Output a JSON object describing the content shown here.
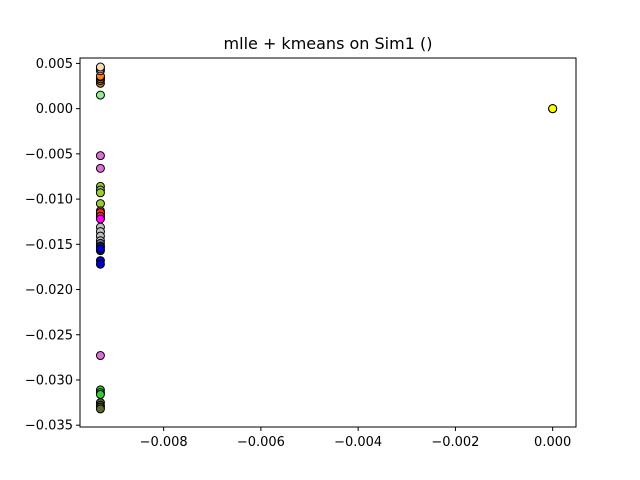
{
  "chart_data": {
    "type": "scatter",
    "title": "mlle + kmeans on Sim1 ()",
    "xlabel": "",
    "ylabel": "",
    "xlim": [
      -0.00972,
      0.00048
    ],
    "ylim": [
      -0.0352,
      0.0056
    ],
    "xticks": [
      {
        "value": -0.008,
        "label": "−0.008"
      },
      {
        "value": -0.006,
        "label": "−0.006"
      },
      {
        "value": -0.004,
        "label": "−0.004"
      },
      {
        "value": -0.002,
        "label": "−0.002"
      },
      {
        "value": 0.0,
        "label": "0.000"
      }
    ],
    "yticks": [
      {
        "value": 0.005,
        "label": "0.005"
      },
      {
        "value": 0.0,
        "label": "0.000"
      },
      {
        "value": -0.005,
        "label": "−0.005"
      },
      {
        "value": -0.01,
        "label": "−0.010"
      },
      {
        "value": -0.015,
        "label": "−0.015"
      },
      {
        "value": -0.02,
        "label": "−0.020"
      },
      {
        "value": -0.025,
        "label": "−0.025"
      },
      {
        "value": -0.03,
        "label": "−0.030"
      },
      {
        "value": -0.035,
        "label": "−0.035"
      }
    ],
    "grid": false,
    "marker_edge_color": "#000000",
    "series": [
      {
        "color": "#b8860b",
        "x": [
          -0.0093,
          -0.0093,
          -0.0093
        ],
        "y": [
          0.0028,
          0.0031,
          0.0034
        ]
      },
      {
        "color": "#ff7f0e",
        "x": [
          -0.0093,
          -0.0093,
          -0.0093
        ],
        "y": [
          0.0033,
          0.0035,
          0.0036
        ]
      },
      {
        "color": "#ffdab9",
        "x": [
          -0.0093,
          -0.0093,
          -0.0093
        ],
        "y": [
          0.0042,
          0.0044,
          0.0046
        ]
      },
      {
        "color": "#90ee90",
        "x": [
          -0.0093
        ],
        "y": [
          0.0015
        ]
      },
      {
        "color": "#da70d6",
        "x": [
          -0.0093,
          -0.0093,
          -0.0093
        ],
        "y": [
          -0.0052,
          -0.0066,
          -0.0273
        ]
      },
      {
        "color": "#9acd32",
        "x": [
          -0.0093,
          -0.0093,
          -0.0093,
          -0.0093
        ],
        "y": [
          -0.0086,
          -0.009,
          -0.0093,
          -0.0105
        ]
      },
      {
        "color": "#cd5c5c",
        "x": [
          -0.0093,
          -0.0093,
          -0.0093
        ],
        "y": [
          -0.0113,
          -0.0117,
          -0.0121
        ]
      },
      {
        "color": "#ff3030",
        "x": [
          -0.0093,
          -0.0093
        ],
        "y": [
          -0.0115,
          -0.0119
        ]
      },
      {
        "color": "#ff00ff",
        "x": [
          -0.0093
        ],
        "y": [
          -0.0122
        ]
      },
      {
        "color": "#c0c0c0",
        "x": [
          -0.0093,
          -0.0093,
          -0.0093,
          -0.0093
        ],
        "y": [
          -0.0131,
          -0.0136,
          -0.0141,
          -0.0146
        ]
      },
      {
        "color": "#708090",
        "x": [
          -0.0093,
          -0.0093
        ],
        "y": [
          -0.0149,
          -0.0153
        ]
      },
      {
        "color": "#191970",
        "x": [
          -0.0093,
          -0.0093
        ],
        "y": [
          -0.0152,
          -0.0157
        ]
      },
      {
        "color": "#0000cd",
        "x": [
          -0.0093,
          -0.0093,
          -0.0093
        ],
        "y": [
          -0.0155,
          -0.0168,
          -0.0172
        ]
      },
      {
        "color": "#32cd32",
        "x": [
          -0.0093,
          -0.0093,
          -0.0093
        ],
        "y": [
          -0.0311,
          -0.0314,
          -0.0316
        ]
      },
      {
        "color": "#556b2f",
        "x": [
          -0.0093,
          -0.0093,
          -0.0093,
          -0.0093
        ],
        "y": [
          -0.0325,
          -0.0328,
          -0.033,
          -0.0332
        ]
      },
      {
        "color": "#ffff00",
        "x": [
          0.0,
          0.0,
          0.0
        ],
        "y": [
          0.0,
          0.0,
          0.0
        ]
      }
    ]
  }
}
